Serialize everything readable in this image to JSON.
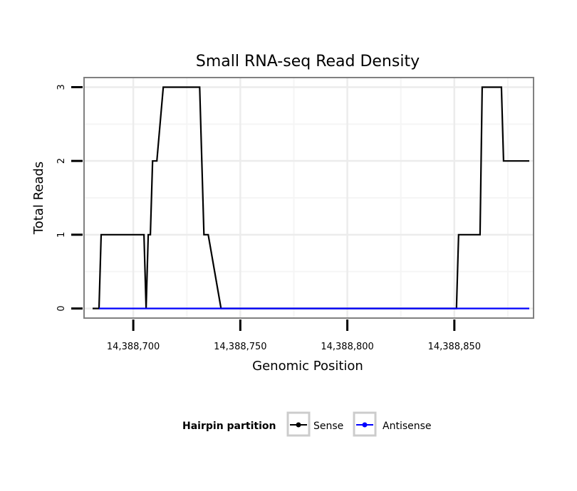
{
  "chart_data": {
    "type": "line",
    "title": "Small RNA-seq Read Density",
    "xlabel": "Genomic Position",
    "ylabel": "Total Reads",
    "xlim": [
      14388677,
      14388887
    ],
    "ylim": [
      -0.13,
      3.13
    ],
    "x_ticks": [
      14388700,
      14388750,
      14388800,
      14388850
    ],
    "x_tick_labels": [
      "14,388,700",
      "14,388,750",
      "14,388,800",
      "14,388,850"
    ],
    "y_ticks": [
      0,
      1,
      2,
      3
    ],
    "y_tick_labels": [
      "0",
      "1",
      "2",
      "3"
    ],
    "grid": true,
    "legend": {
      "title": "Hairpin partition",
      "position": "bottom",
      "entries": [
        "Sense",
        "Antisense"
      ]
    },
    "series": [
      {
        "name": "Sense",
        "color": "#000000",
        "x": [
          14388681,
          14388684,
          14388685,
          14388705,
          14388706,
          14388707,
          14388708,
          14388709,
          14388711,
          14388714,
          14388715,
          14388721,
          14388731,
          14388732,
          14388733,
          14388735,
          14388741,
          14388742,
          14388851,
          14388852,
          14388862,
          14388863,
          14388872,
          14388873,
          14388885
        ],
        "y": [
          0,
          0,
          1,
          1,
          0,
          1,
          1,
          2,
          2,
          3,
          3,
          3,
          3,
          2,
          1,
          1,
          0,
          0,
          0,
          1,
          1,
          3,
          3,
          2,
          2
        ]
      },
      {
        "name": "Antisense",
        "color": "#0000ff",
        "x": [
          14388684,
          14388885
        ],
        "y": [
          0,
          0
        ]
      }
    ]
  }
}
